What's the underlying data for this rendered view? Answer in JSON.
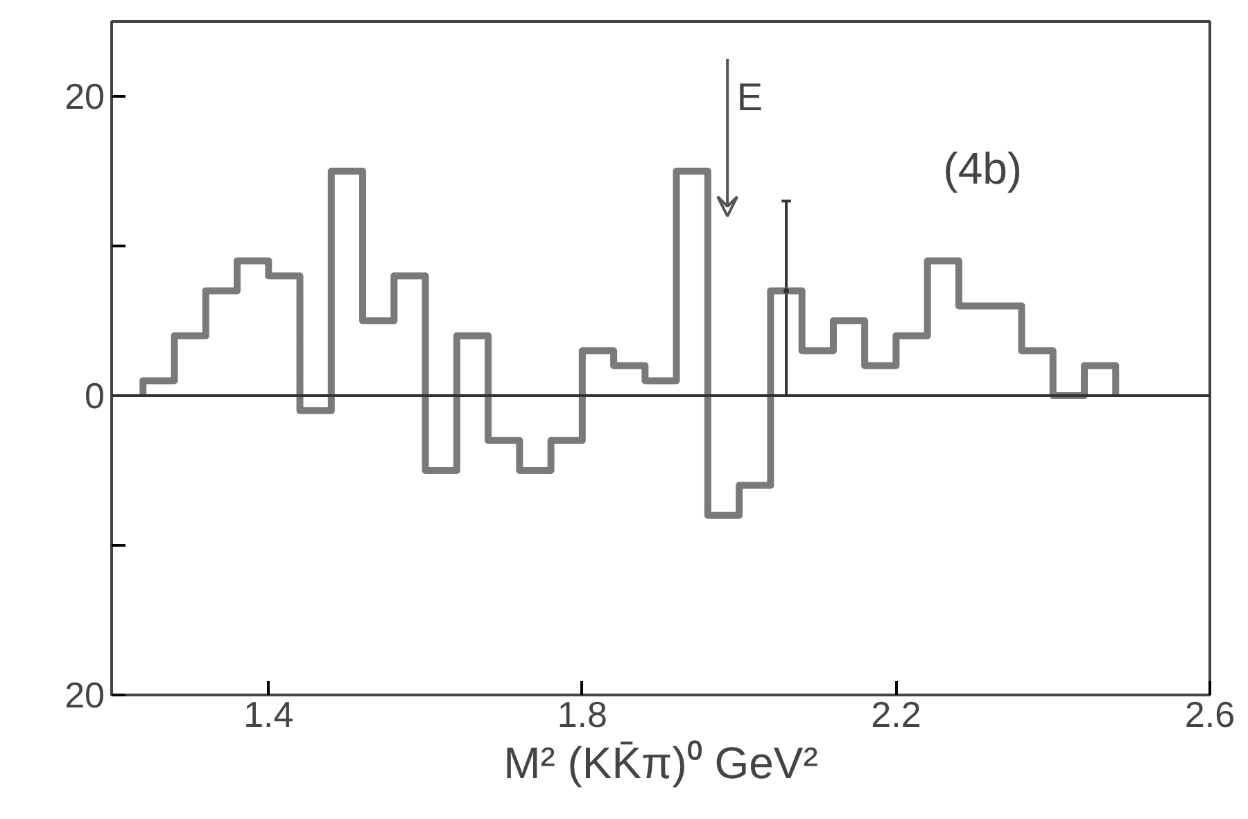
{
  "chart_data": {
    "type": "histogram",
    "xlabel": "M² (KK̄π)⁰ GeV²",
    "bins": [
      1.24,
      1.28,
      1.32,
      1.36,
      1.4,
      1.44,
      1.48,
      1.52,
      1.56,
      1.6,
      1.64,
      1.68,
      1.72,
      1.76,
      1.8,
      1.84,
      1.88,
      1.92,
      1.96,
      2.0,
      2.04,
      2.08,
      2.12,
      2.16,
      2.2,
      2.24,
      2.28,
      2.32,
      2.36,
      2.4,
      2.44,
      2.48
    ],
    "values": [
      1,
      4,
      7,
      9,
      8,
      -1,
      15,
      5,
      8,
      -5,
      4,
      -3,
      -5,
      -3,
      3,
      2,
      1,
      15,
      -8,
      -6,
      7,
      3,
      5,
      2,
      4,
      9,
      6,
      6,
      3,
      0,
      2
    ],
    "series": [
      {
        "type": "scatter",
        "x": [
          2.06
        ],
        "values": [
          7
        ],
        "errors": [
          [
            0,
            13
          ]
        ],
        "marker": "none",
        "color": "#333333"
      }
    ],
    "color": "#7a7a7a",
    "xlim": [
      1.2,
      2.6
    ],
    "ylim": [
      -20,
      25
    ],
    "xticks": [
      1.4,
      1.8,
      2.2,
      2.6
    ],
    "yticks": [
      {
        "value": -20,
        "label": "20"
      },
      {
        "value": -10,
        "label": null
      },
      0,
      {
        "value": 10,
        "label": null
      },
      20
    ],
    "ref_lines": [
      {
        "axis": "y",
        "value": 0,
        "label": null,
        "color": "#333333"
      }
    ],
    "annotations": [
      "E",
      "(4b)"
    ],
    "grid": false
  }
}
